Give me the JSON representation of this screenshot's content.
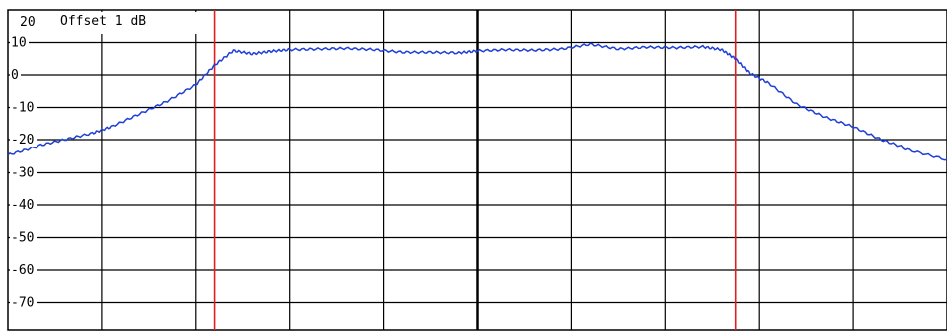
{
  "chart_data": {
    "type": "line",
    "title": "",
    "xlabel": "",
    "ylabel": "",
    "ylim": [
      -80,
      20
    ],
    "xlim": [
      0,
      10
    ],
    "grid": true,
    "top_label": "20",
    "offset_label": "Offset  1 dB",
    "y_ticks": [
      {
        "value": 10,
        "label": "10"
      },
      {
        "value": 0,
        "label": "0"
      },
      {
        "value": -10,
        "label": "-10"
      },
      {
        "value": -20,
        "label": "-20"
      },
      {
        "value": -30,
        "label": "-30"
      },
      {
        "value": -40,
        "label": "-40"
      },
      {
        "value": -50,
        "label": "-50"
      },
      {
        "value": -60,
        "label": "-60"
      },
      {
        "value": -70,
        "label": "-70"
      }
    ],
    "markers": [
      2.2,
      7.75
    ],
    "colors": {
      "trace": "#1f3fd6",
      "markers": "#e02020",
      "grid": "#000000"
    },
    "series": [
      {
        "x": [
          0,
          0.3,
          0.6,
          0.9,
          1.1,
          1.4,
          1.7,
          2.0,
          2.2,
          2.4,
          2.6,
          2.8,
          3.0,
          3.3,
          3.6,
          3.9,
          4.2,
          4.5,
          4.8,
          5.0,
          5.3,
          5.6,
          5.9,
          6.2,
          6.5,
          6.8,
          7.1,
          7.4,
          7.6,
          7.75,
          7.9,
          8.1,
          8.4,
          8.7,
          9.0,
          9.3,
          9.6,
          10.0
        ],
        "y": [
          -24.5,
          -22,
          -20,
          -18,
          -16,
          -12,
          -8,
          -3,
          3,
          7.5,
          6.5,
          7.3,
          7.8,
          8.0,
          8.2,
          7.8,
          7.0,
          7.0,
          6.8,
          7.4,
          7.8,
          7.6,
          8.0,
          9.5,
          8.0,
          8.6,
          8.4,
          8.7,
          7.8,
          5.0,
          0.5,
          -2.5,
          -9,
          -13,
          -16,
          -20,
          -23,
          -26
        ]
      }
    ]
  }
}
